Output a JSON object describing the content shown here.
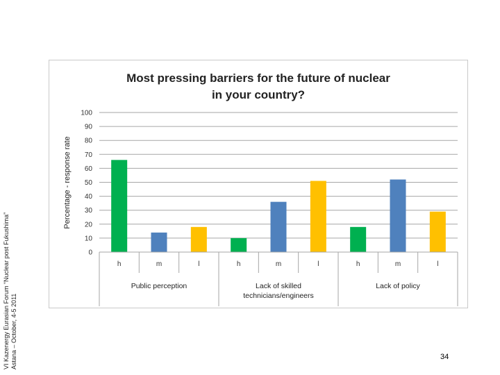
{
  "side_caption": {
    "line1": "VI Kazenergy Eurasian Forum “Nuclear post Fukushima”",
    "line2": "Astana – October, 4-5 2011"
  },
  "page_number": "34",
  "chart_data": {
    "type": "bar",
    "title_line1": "Most pressing barriers for the future of nuclear",
    "title_line2": "in your country?",
    "ylabel": "Percentage - response rate",
    "xlabel": "",
    "ylim": [
      0,
      100
    ],
    "yticks": [
      "0",
      "10",
      "20",
      "30",
      "40",
      "50",
      "60",
      "70",
      "80",
      "90",
      "100"
    ],
    "grid": true,
    "categories": [
      "h",
      "m",
      "l",
      "h",
      "m",
      "l",
      "h",
      "m",
      "l"
    ],
    "groups": [
      {
        "label_lines": [
          "Public perception"
        ],
        "span": [
          0,
          2
        ]
      },
      {
        "label_lines": [
          "Lack of skilled",
          "technicians/engineers"
        ],
        "span": [
          3,
          5
        ]
      },
      {
        "label_lines": [
          "Lack of policy"
        ],
        "span": [
          6,
          8
        ]
      }
    ],
    "values": [
      66,
      14,
      18,
      10,
      36,
      51,
      18,
      52,
      29
    ],
    "bar_colors": [
      "#00b050",
      "#4f81bd",
      "#ffc000",
      "#00b050",
      "#4f81bd",
      "#ffc000",
      "#00b050",
      "#4f81bd",
      "#ffc000"
    ]
  }
}
